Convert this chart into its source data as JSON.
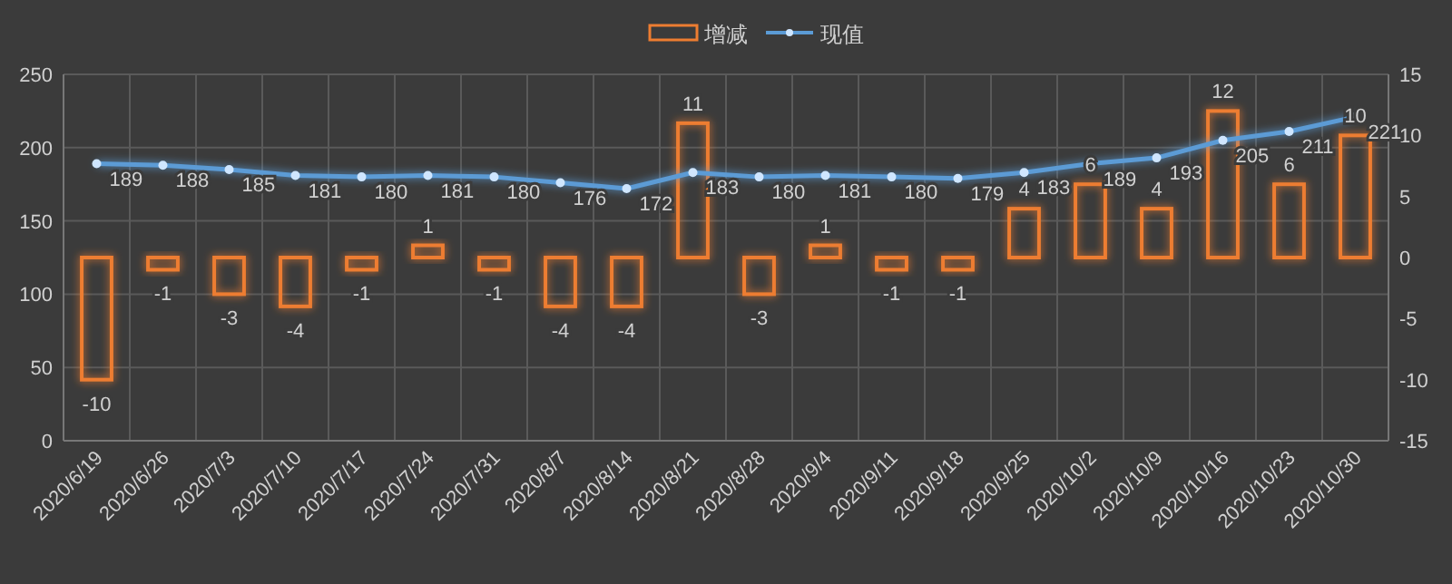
{
  "chart_data": {
    "type": "bar",
    "categories": [
      "2020/6/19",
      "2020/6/26",
      "2020/7/3",
      "2020/7/10",
      "2020/7/17",
      "2020/7/24",
      "2020/7/31",
      "2020/8/7",
      "2020/8/14",
      "2020/8/21",
      "2020/8/28",
      "2020/9/4",
      "2020/9/11",
      "2020/9/18",
      "2020/9/25",
      "2020/10/2",
      "2020/10/9",
      "2020/10/16",
      "2020/10/23",
      "2020/10/30"
    ],
    "series": [
      {
        "name": "增减",
        "axis": "y2",
        "color": "#ed7d31",
        "values": [
          -10,
          -1,
          -3,
          -4,
          -1,
          1,
          -1,
          -4,
          -4,
          11,
          -3,
          1,
          -1,
          -1,
          4,
          6,
          4,
          12,
          6,
          10
        ]
      },
      {
        "name": "现值",
        "type": "line",
        "color": "#5b9bd5",
        "values": [
          189,
          188,
          185,
          181,
          180,
          181,
          180,
          176,
          172,
          183,
          180,
          181,
          180,
          179,
          183,
          189,
          193,
          205,
          211,
          221
        ]
      }
    ],
    "ylim": [
      0,
      250
    ],
    "yticks": [
      0,
      50,
      100,
      150,
      200,
      250
    ],
    "y2lim": [
      -15,
      15
    ],
    "y2ticks": [
      -15,
      -10,
      -5,
      0,
      5,
      10,
      15
    ],
    "grid": true,
    "legend": "top",
    "marker": "circle",
    "data_labels": true
  }
}
